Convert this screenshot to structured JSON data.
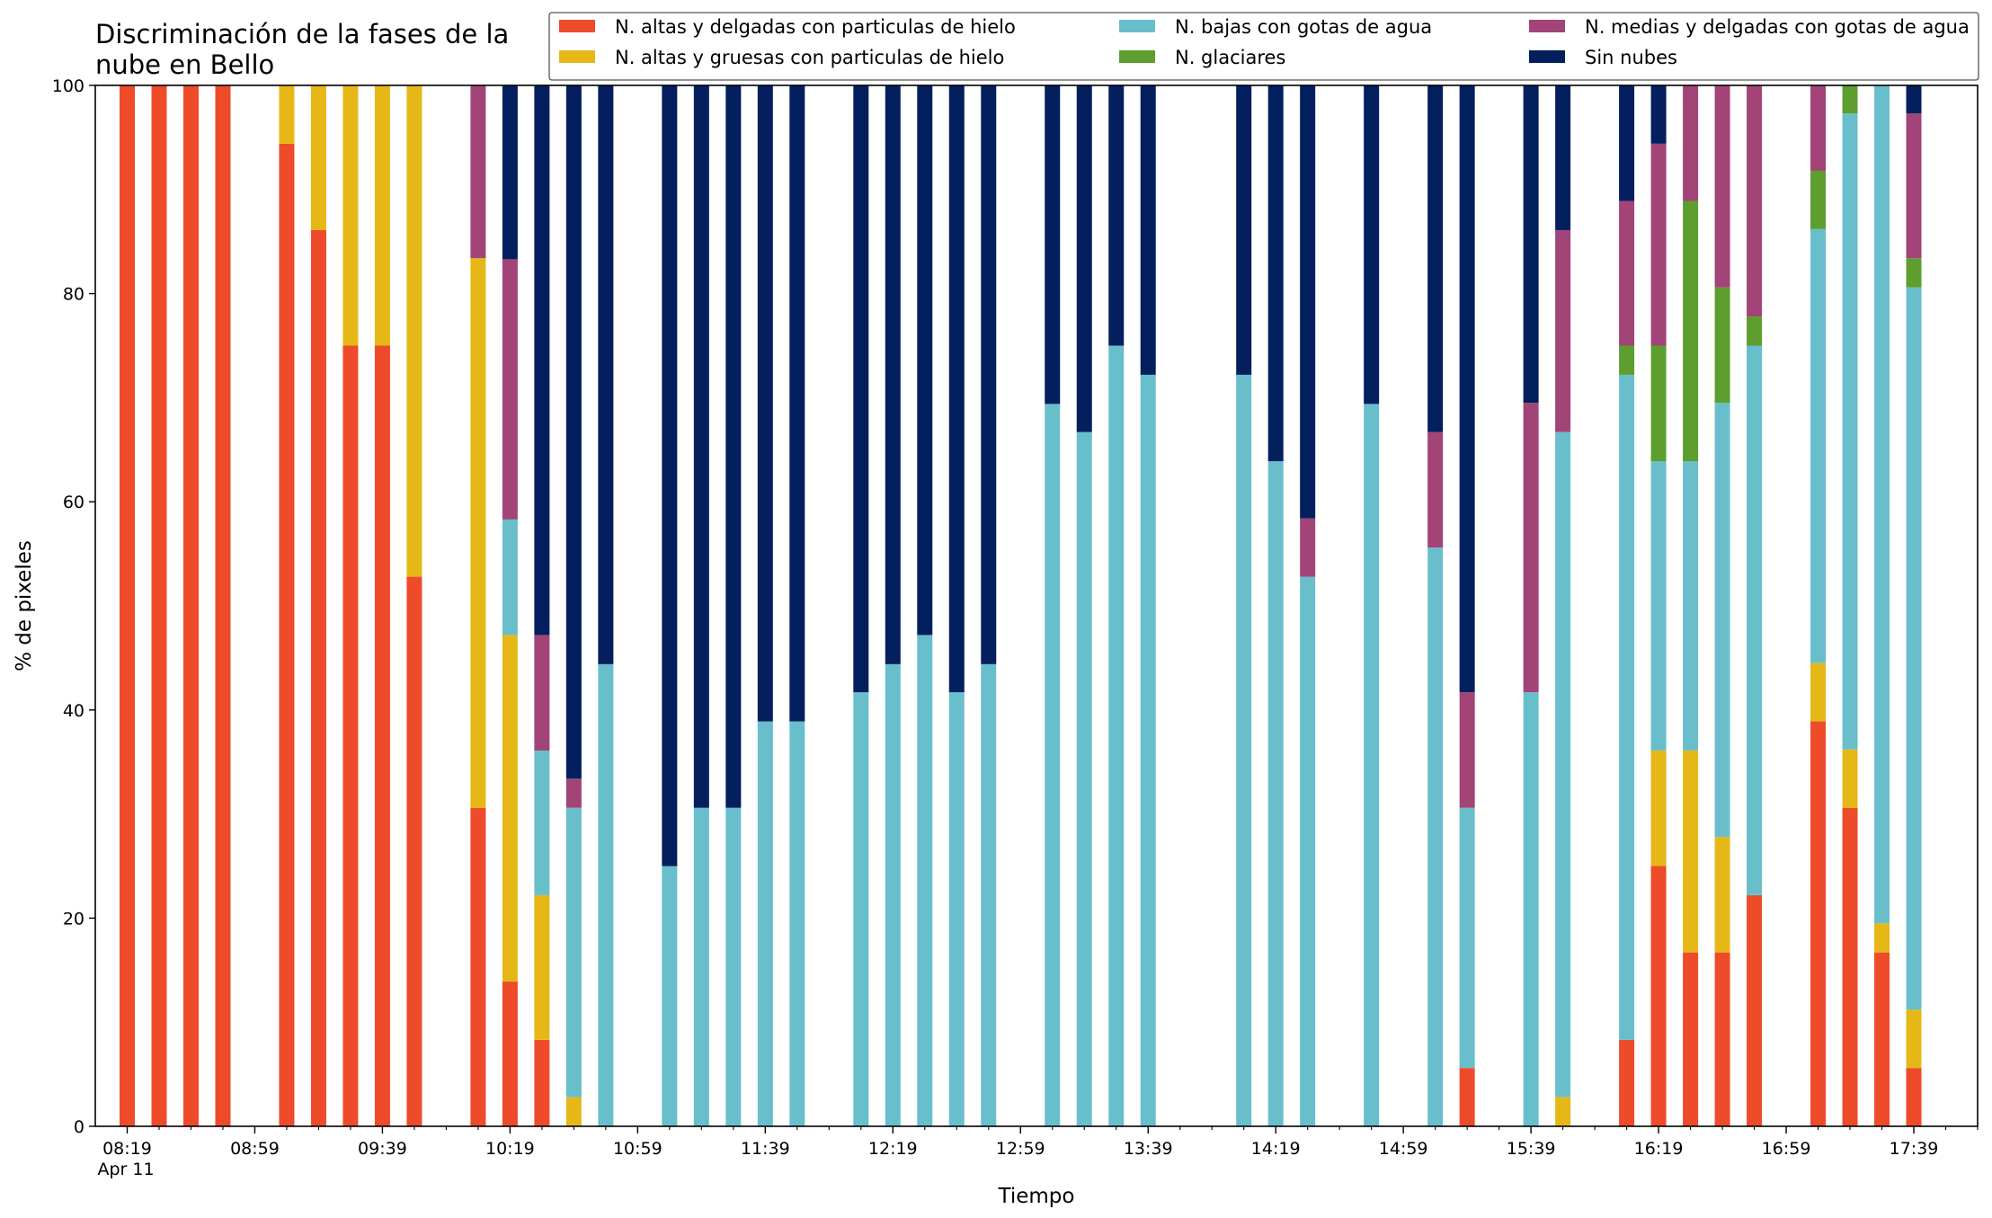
{
  "chart_data": {
    "type": "bar",
    "stacked": true,
    "title": "Discriminación de la fases de la nube en Bello",
    "title_lines": [
      "Discriminación de la fases de la",
      "nube en Bello"
    ],
    "xlabel": "Tiempo",
    "ylabel": "% de pixeles",
    "ylim": [
      0,
      100
    ],
    "yticks": [
      0,
      20,
      40,
      60,
      80,
      100
    ],
    "xlim": [
      "08:09",
      "17:59"
    ],
    "xticks": [
      {
        "time": "08:19",
        "label": "08:19",
        "sublabel": "Apr 11"
      },
      {
        "time": "08:59",
        "label": "08:59"
      },
      {
        "time": "09:39",
        "label": "09:39"
      },
      {
        "time": "10:19",
        "label": "10:19"
      },
      {
        "time": "10:59",
        "label": "10:59"
      },
      {
        "time": "11:39",
        "label": "11:39"
      },
      {
        "time": "12:19",
        "label": "12:19"
      },
      {
        "time": "12:59",
        "label": "12:59"
      },
      {
        "time": "13:39",
        "label": "13:39"
      },
      {
        "time": "14:19",
        "label": "14:19"
      },
      {
        "time": "14:59",
        "label": "14:59"
      },
      {
        "time": "15:39",
        "label": "15:39"
      },
      {
        "time": "16:19",
        "label": "16:19"
      },
      {
        "time": "16:59",
        "label": "16:59"
      },
      {
        "time": "17:39",
        "label": "17:39"
      }
    ],
    "legend_position": "top-right",
    "grid": false,
    "x": [
      "08:19",
      "08:29",
      "08:39",
      "08:49",
      "09:09",
      "09:19",
      "09:29",
      "09:39",
      "09:49",
      "10:09",
      "10:19",
      "10:29",
      "10:39",
      "10:49",
      "11:09",
      "11:19",
      "11:29",
      "11:39",
      "11:49",
      "12:09",
      "12:19",
      "12:29",
      "12:39",
      "12:49",
      "13:09",
      "13:19",
      "13:29",
      "13:39",
      "14:09",
      "14:19",
      "14:29",
      "14:49",
      "15:09",
      "15:19",
      "15:39",
      "15:49",
      "16:09",
      "16:19",
      "16:29",
      "16:39",
      "16:49",
      "17:09",
      "17:19",
      "17:29",
      "17:39"
    ],
    "series": [
      {
        "name": "N. altas y delgadas con particulas de hielo",
        "color": "#ee4b2b",
        "values": [
          100,
          100,
          100,
          100,
          94.4,
          86.1,
          75,
          75,
          52.8,
          30.6,
          13.9,
          8.3,
          0,
          0,
          0,
          0,
          0,
          0,
          0,
          0,
          0,
          0,
          0,
          0,
          0,
          0,
          0,
          0,
          0,
          0,
          0,
          0,
          0,
          5.6,
          0,
          0,
          8.3,
          25,
          16.7,
          16.7,
          22.2,
          38.9,
          30.6,
          16.7,
          5.6
        ]
      },
      {
        "name": "N. altas y gruesas con particulas de hielo",
        "color": "#e6b817",
        "values": [
          0,
          0,
          0,
          0,
          5.6,
          13.9,
          25,
          25,
          47.2,
          52.8,
          33.3,
          13.9,
          2.8,
          0,
          0,
          0,
          0,
          0,
          0,
          0,
          0,
          0,
          0,
          0,
          0,
          0,
          0,
          0,
          0,
          0,
          0,
          0,
          0,
          0,
          0,
          2.8,
          0,
          11.1,
          19.4,
          11.1,
          0,
          5.6,
          5.6,
          2.8,
          5.6
        ]
      },
      {
        "name": "N. bajas con gotas de agua",
        "color": "#68bfcb",
        "values": [
          0,
          0,
          0,
          0,
          0,
          0,
          0,
          0,
          0,
          0,
          11.1,
          13.9,
          27.8,
          44.4,
          25,
          30.6,
          30.6,
          38.9,
          38.9,
          41.7,
          44.4,
          47.2,
          41.7,
          44.4,
          69.4,
          66.7,
          75,
          72.2,
          72.2,
          63.9,
          52.8,
          69.4,
          55.6,
          25,
          41.7,
          63.9,
          63.9,
          27.8,
          27.8,
          41.7,
          52.8,
          41.7,
          61.1,
          80.6,
          69.4
        ]
      },
      {
        "name": "N. glaciares",
        "color": "#5d9e2e",
        "values": [
          0,
          0,
          0,
          0,
          0,
          0,
          0,
          0,
          0,
          0,
          0,
          0,
          0,
          0,
          0,
          0,
          0,
          0,
          0,
          0,
          0,
          0,
          0,
          0,
          0,
          0,
          0,
          0,
          0,
          0,
          0,
          0,
          0,
          0,
          0,
          0,
          2.8,
          11.1,
          25,
          11.1,
          2.8,
          5.6,
          2.7,
          0,
          2.8
        ]
      },
      {
        "name": "N. medias y delgadas con gotas de agua",
        "color": "#a24478",
        "values": [
          0,
          0,
          0,
          0,
          0,
          0,
          0,
          0,
          0,
          16.7,
          25,
          11.1,
          2.8,
          0,
          0,
          0,
          0,
          0,
          0,
          0,
          0,
          0,
          0,
          0,
          0,
          0,
          0,
          0,
          0,
          0,
          5.6,
          0,
          11.1,
          11.1,
          27.8,
          19.4,
          13.9,
          19.4,
          11.1,
          19.4,
          22.2,
          8.3,
          0,
          0,
          13.9
        ]
      },
      {
        "name": "Sin nubes",
        "color": "#041f5e",
        "values": [
          0,
          0,
          0,
          0,
          0,
          0,
          0,
          0,
          0,
          0,
          16.7,
          52.8,
          66.7,
          55.6,
          75,
          69.4,
          69.4,
          61.1,
          61.1,
          58.3,
          55.6,
          52.8,
          58.3,
          55.6,
          30.6,
          33.3,
          25,
          27.8,
          27.8,
          36.1,
          41.7,
          30.6,
          33.3,
          58.3,
          30.6,
          13.9,
          11.1,
          5.6,
          0,
          0,
          0,
          0,
          0,
          0,
          2.8
        ]
      }
    ],
    "legend_order": [
      0,
      1,
      2,
      3,
      4,
      5
    ]
  }
}
